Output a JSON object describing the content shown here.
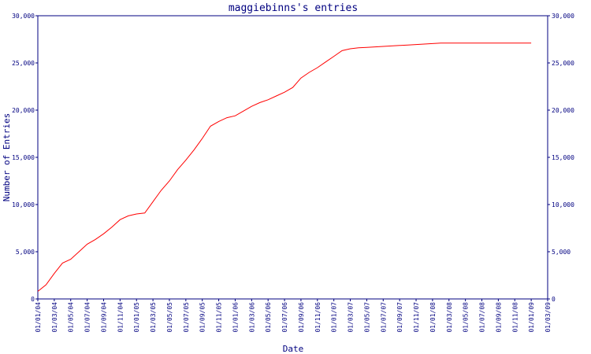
{
  "chart_data": {
    "type": "line",
    "title": "maggiebinns's entries",
    "xlabel": "Date",
    "ylabel": "Number of Entries",
    "ylim": [
      0,
      30000
    ],
    "y_ticks": [
      "0",
      "5,000",
      "10,000",
      "15,000",
      "20,000",
      "25,000",
      "30,000"
    ],
    "x_ticks": [
      "01/01/04",
      "01/03/04",
      "01/05/04",
      "01/07/04",
      "01/09/04",
      "01/11/04",
      "01/01/05",
      "01/03/05",
      "01/05/05",
      "01/07/05",
      "01/09/05",
      "01/11/05",
      "01/01/06",
      "01/03/06",
      "01/05/06",
      "01/07/06",
      "01/09/06",
      "01/11/06",
      "01/01/07",
      "01/03/07",
      "01/05/07",
      "01/07/07",
      "01/09/07",
      "01/11/07",
      "01/01/08",
      "01/03/08",
      "01/05/08",
      "01/07/08",
      "01/09/08",
      "01/11/08",
      "01/01/09",
      "01/03/09"
    ],
    "grid": false,
    "colors": {
      "line": "#ff0000",
      "axis": "#000080",
      "text": "#000080"
    },
    "series": [
      {
        "x": [
          "01/01/04",
          "01/02/04",
          "01/03/04",
          "01/04/04",
          "01/05/04",
          "01/06/04",
          "01/07/04",
          "01/08/04",
          "01/09/04",
          "01/10/04",
          "01/11/04",
          "01/12/04",
          "01/01/05",
          "01/02/05",
          "01/03/05",
          "01/04/05",
          "01/05/05",
          "01/06/05",
          "01/07/05",
          "01/08/05",
          "01/09/05",
          "01/10/05",
          "01/11/05",
          "01/12/05",
          "01/01/06",
          "01/02/06",
          "01/03/06",
          "01/04/06",
          "01/05/06",
          "01/06/06",
          "01/07/06",
          "01/08/06",
          "01/09/06",
          "01/10/06",
          "01/11/06",
          "01/12/06",
          "01/01/07",
          "01/02/07",
          "01/03/07",
          "01/04/07",
          "01/05/07",
          "01/06/07",
          "01/07/07",
          "01/08/07",
          "01/09/07",
          "01/10/07",
          "01/11/07",
          "01/12/07",
          "01/01/08",
          "01/02/08",
          "01/03/08",
          "01/04/08",
          "01/05/08",
          "01/06/08",
          "01/07/08",
          "01/08/08",
          "01/09/08",
          "01/10/08",
          "01/11/08",
          "01/12/08",
          "01/01/09"
        ],
        "values": [
          800,
          1500,
          2700,
          3800,
          4200,
          5000,
          5800,
          6300,
          6900,
          7600,
          8400,
          8800,
          9000,
          9100,
          10300,
          11500,
          12500,
          13700,
          14700,
          15800,
          17000,
          18300,
          18800,
          19200,
          19400,
          19900,
          20400,
          20800,
          21100,
          21500,
          21900,
          22400,
          23400,
          24000,
          24500,
          25100,
          25700,
          26300,
          26500,
          26600,
          26650,
          26700,
          26750,
          26800,
          26850,
          26900,
          26950,
          27000,
          27050,
          27100,
          27100,
          27100,
          27100,
          27100,
          27100,
          27100,
          27100,
          27100,
          27100,
          27100,
          27100
        ]
      }
    ]
  }
}
